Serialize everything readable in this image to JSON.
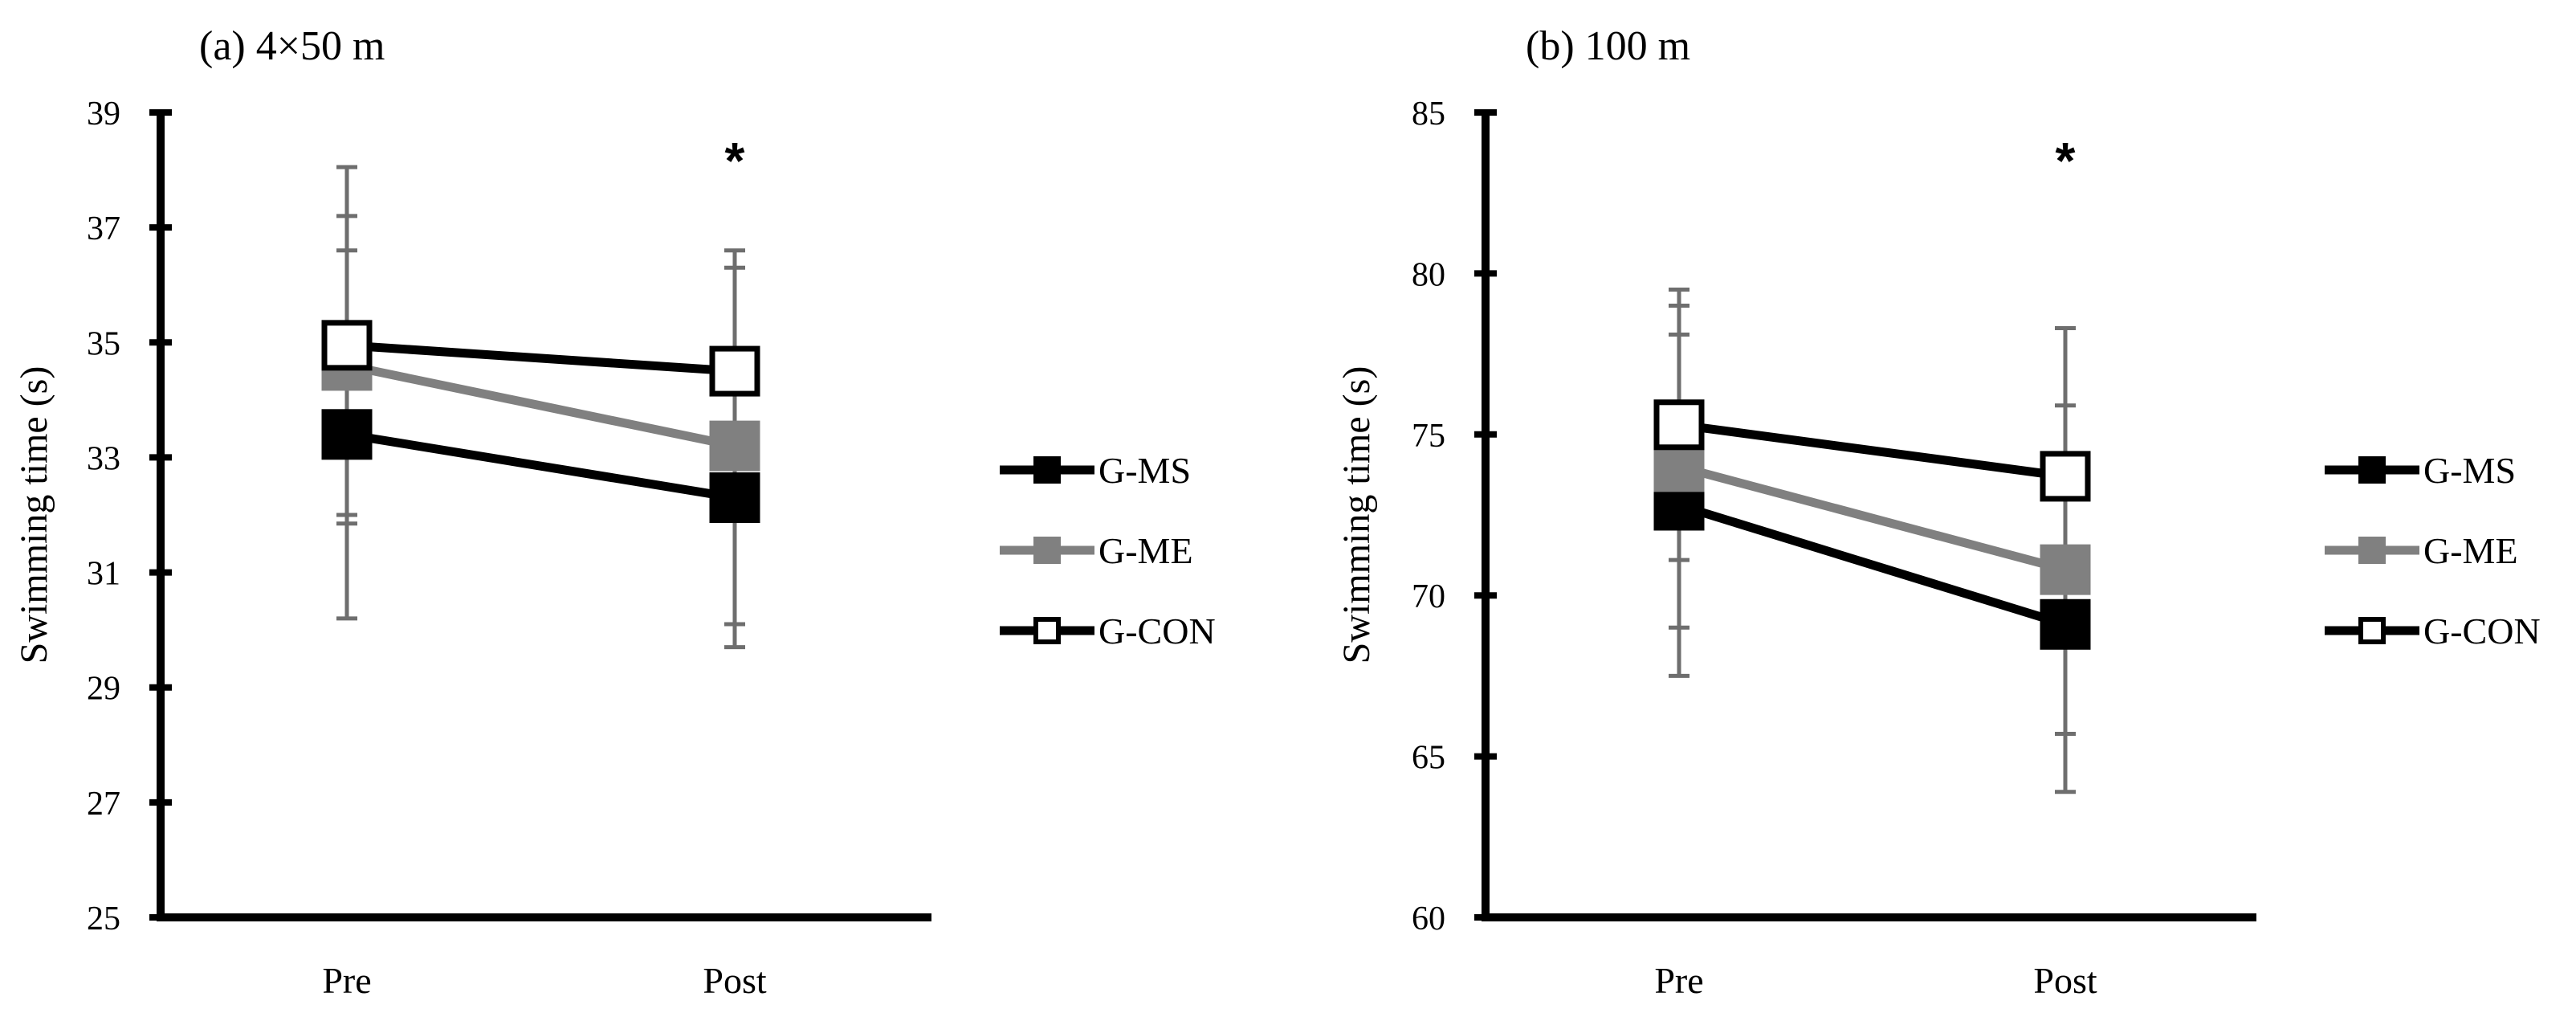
{
  "series_styles": {
    "G-MS": {
      "line": "#000000",
      "fill": "#000000",
      "stroke": "#000000"
    },
    "G-ME": {
      "line": "#808080",
      "fill": "#808080",
      "stroke": "#808080"
    },
    "G-CON": {
      "line": "#000000",
      "fill": "#ffffff",
      "stroke": "#000000"
    }
  },
  "error_bar_color": "#6e6e6e",
  "chart_data": [
    {
      "type": "line",
      "title": "(a) 4×50 m",
      "xlabel": "",
      "ylabel": "Swimming time (s)",
      "categories": [
        "Pre",
        "Post"
      ],
      "ylim": [
        25,
        39
      ],
      "yticks": [
        25,
        27,
        29,
        31,
        33,
        35,
        37,
        39
      ],
      "annotations": [
        {
          "category": "Post",
          "text": "*"
        }
      ],
      "series": [
        {
          "name": "G-MS",
          "values": [
            33.4,
            32.3
          ],
          "errors": [
            3.2,
            2.6
          ]
        },
        {
          "name": "G-ME",
          "values": [
            34.6,
            33.2
          ],
          "errors": [
            2.6,
            3.1
          ]
        },
        {
          "name": "G-CON",
          "values": [
            34.95,
            34.5
          ],
          "errors": [
            3.1,
            2.1
          ]
        }
      ]
    },
    {
      "type": "line",
      "title": "(b) 100 m",
      "xlabel": "",
      "ylabel": "Swimming time (s)",
      "categories": [
        "Pre",
        "Post"
      ],
      "ylim": [
        60,
        85
      ],
      "yticks": [
        60,
        65,
        70,
        75,
        80,
        85
      ],
      "annotations": [
        {
          "category": "Post",
          "text": "*"
        }
      ],
      "series": [
        {
          "name": "G-MS",
          "values": [
            72.8,
            69.1
          ],
          "errors": [
            5.3,
            5.2
          ]
        },
        {
          "name": "G-ME",
          "values": [
            74.0,
            70.8
          ],
          "errors": [
            5.0,
            5.1
          ]
        },
        {
          "name": "G-CON",
          "values": [
            75.3,
            73.7
          ],
          "errors": [
            4.2,
            4.6
          ]
        }
      ]
    }
  ]
}
